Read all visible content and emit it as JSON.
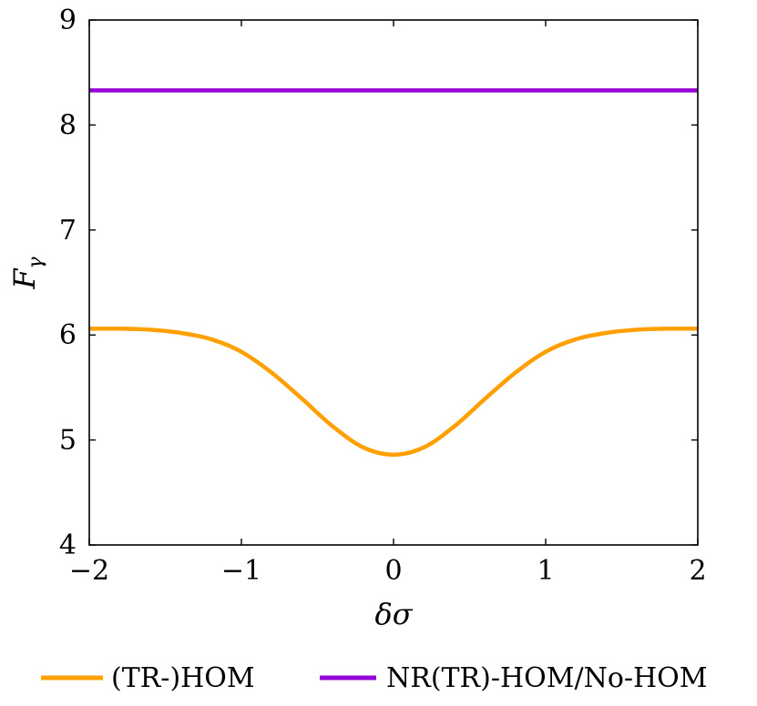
{
  "chart_data": {
    "type": "line",
    "xlabel": "δσ",
    "ylabel": "F_γ",
    "ylabel_main": "F",
    "ylabel_sub": "γ",
    "xlim": [
      -2,
      2
    ],
    "ylim": [
      4,
      9
    ],
    "x_ticks": [
      -2,
      -1,
      0,
      1,
      2
    ],
    "x_tick_labels": [
      "−2",
      "−1",
      "0",
      "1",
      "2"
    ],
    "y_ticks": [
      4,
      5,
      6,
      7,
      8,
      9
    ],
    "y_tick_labels": [
      "4",
      "5",
      "6",
      "7",
      "8",
      "9"
    ],
    "grid": false,
    "legend_position": "bottom",
    "series": [
      {
        "name": "(TR-)HOM",
        "color": "#FF9F00",
        "x": [
          -2.0,
          -1.8,
          -1.6,
          -1.4,
          -1.2,
          -1.0,
          -0.8,
          -0.6,
          -0.4,
          -0.2,
          0.0,
          0.2,
          0.4,
          0.6,
          0.8,
          1.0,
          1.2,
          1.4,
          1.6,
          1.8,
          2.0
        ],
        "y": [
          6.06,
          6.06,
          6.05,
          6.02,
          5.96,
          5.84,
          5.64,
          5.39,
          5.13,
          4.93,
          4.86,
          4.93,
          5.13,
          5.39,
          5.64,
          5.84,
          5.96,
          6.02,
          6.05,
          6.06,
          6.06
        ]
      },
      {
        "name": "NR(TR)-HOM/No-HOM",
        "color": "#9400D3",
        "x": [
          -2.0,
          2.0
        ],
        "y": [
          8.33,
          8.33
        ]
      }
    ]
  }
}
